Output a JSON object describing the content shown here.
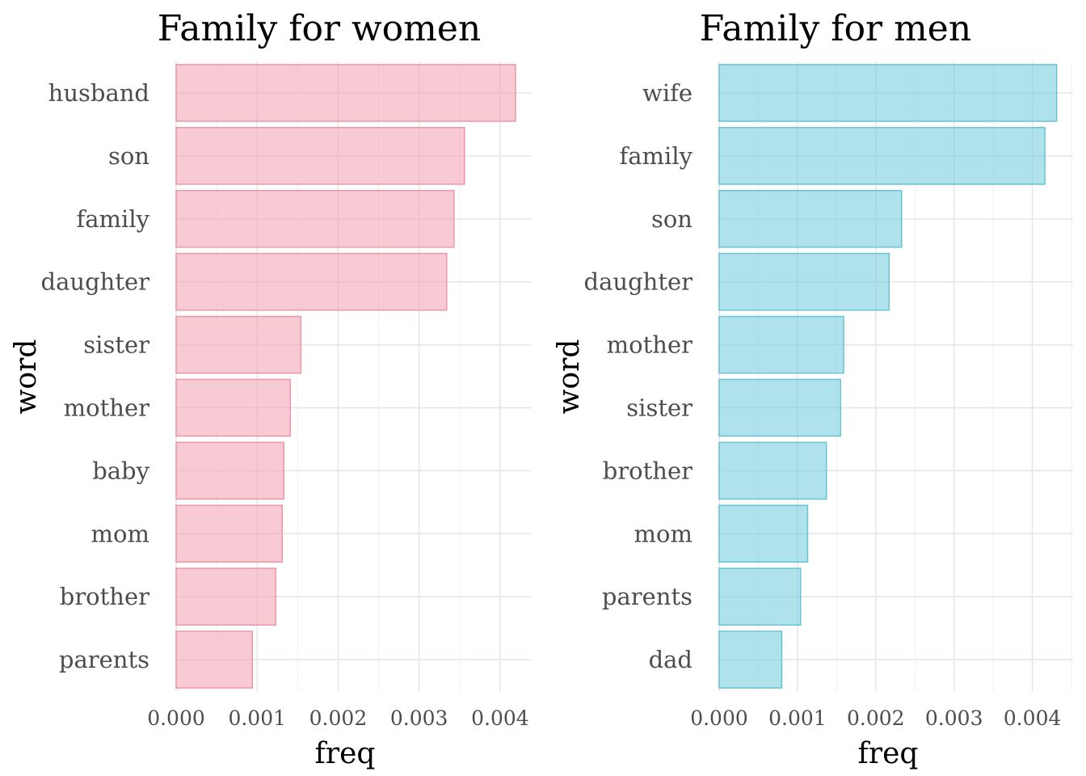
{
  "chart_data": [
    {
      "type": "bar",
      "orientation": "horizontal",
      "title": "Family for women",
      "xlabel": "freq",
      "ylabel": "word",
      "categories": [
        "husband",
        "son",
        "family",
        "daughter",
        "sister",
        "mother",
        "baby",
        "mom",
        "brother",
        "parents"
      ],
      "values": [
        0.00419,
        0.00356,
        0.00343,
        0.00334,
        0.00154,
        0.00141,
        0.00133,
        0.00131,
        0.00123,
        0.00094
      ],
      "xlim": [
        0,
        0.00438
      ],
      "xticks": [
        "0.000",
        "0.001",
        "0.002",
        "0.003",
        "0.004"
      ],
      "grid": true,
      "bar_color": "#f4a6b7",
      "bar_edge": "#eb97a8"
    },
    {
      "type": "bar",
      "orientation": "horizontal",
      "title": "Family for men",
      "xlabel": "freq",
      "ylabel": "word",
      "categories": [
        "wife",
        "family",
        "son",
        "daughter",
        "mother",
        "sister",
        "brother",
        "mom",
        "parents",
        "dad"
      ],
      "values": [
        0.00431,
        0.00416,
        0.00233,
        0.00217,
        0.00159,
        0.00155,
        0.00137,
        0.00113,
        0.00104,
        0.0008
      ],
      "xlim": [
        0,
        0.00452
      ],
      "xticks": [
        "0.000",
        "0.001",
        "0.002",
        "0.003",
        "0.004"
      ],
      "grid": true,
      "bar_color": "#7ccfdd",
      "bar_edge": "#66c4d4"
    }
  ]
}
